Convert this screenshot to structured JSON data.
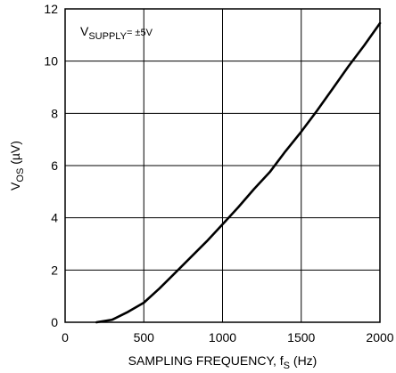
{
  "chart_data": {
    "type": "line",
    "annotation": {
      "main": "V",
      "sub": "SUPPLY",
      "tail": "= ±5V"
    },
    "xlabel": {
      "main": "SAMPLING FREQUENCY, f",
      "sub": "S",
      "tail": " (Hz)"
    },
    "ylabel": {
      "main": "V",
      "sub": "OS",
      "tail": " (µV)"
    },
    "xlim": [
      0,
      2000
    ],
    "ylim": [
      0,
      12
    ],
    "xticks": [
      0,
      500,
      1000,
      1500,
      2000
    ],
    "yticks": [
      0,
      2,
      4,
      6,
      8,
      10,
      12
    ],
    "xtick_labels": [
      "0",
      "500",
      "1000",
      "1500",
      "2000"
    ],
    "ytick_labels": [
      "0",
      "2",
      "4",
      "6",
      "8",
      "10",
      "12"
    ],
    "grid": true,
    "series": [
      {
        "x": [
          200,
          300,
          400,
          500,
          600,
          700,
          800,
          900,
          1000,
          1100,
          1200,
          1300,
          1400,
          1500,
          1600,
          1700,
          1800,
          1900,
          2000
        ],
        "y": [
          0.0,
          0.1,
          0.4,
          0.75,
          1.3,
          1.9,
          2.5,
          3.1,
          3.75,
          4.4,
          5.1,
          5.75,
          6.55,
          7.3,
          8.1,
          8.95,
          9.8,
          10.6,
          11.45
        ]
      }
    ]
  }
}
